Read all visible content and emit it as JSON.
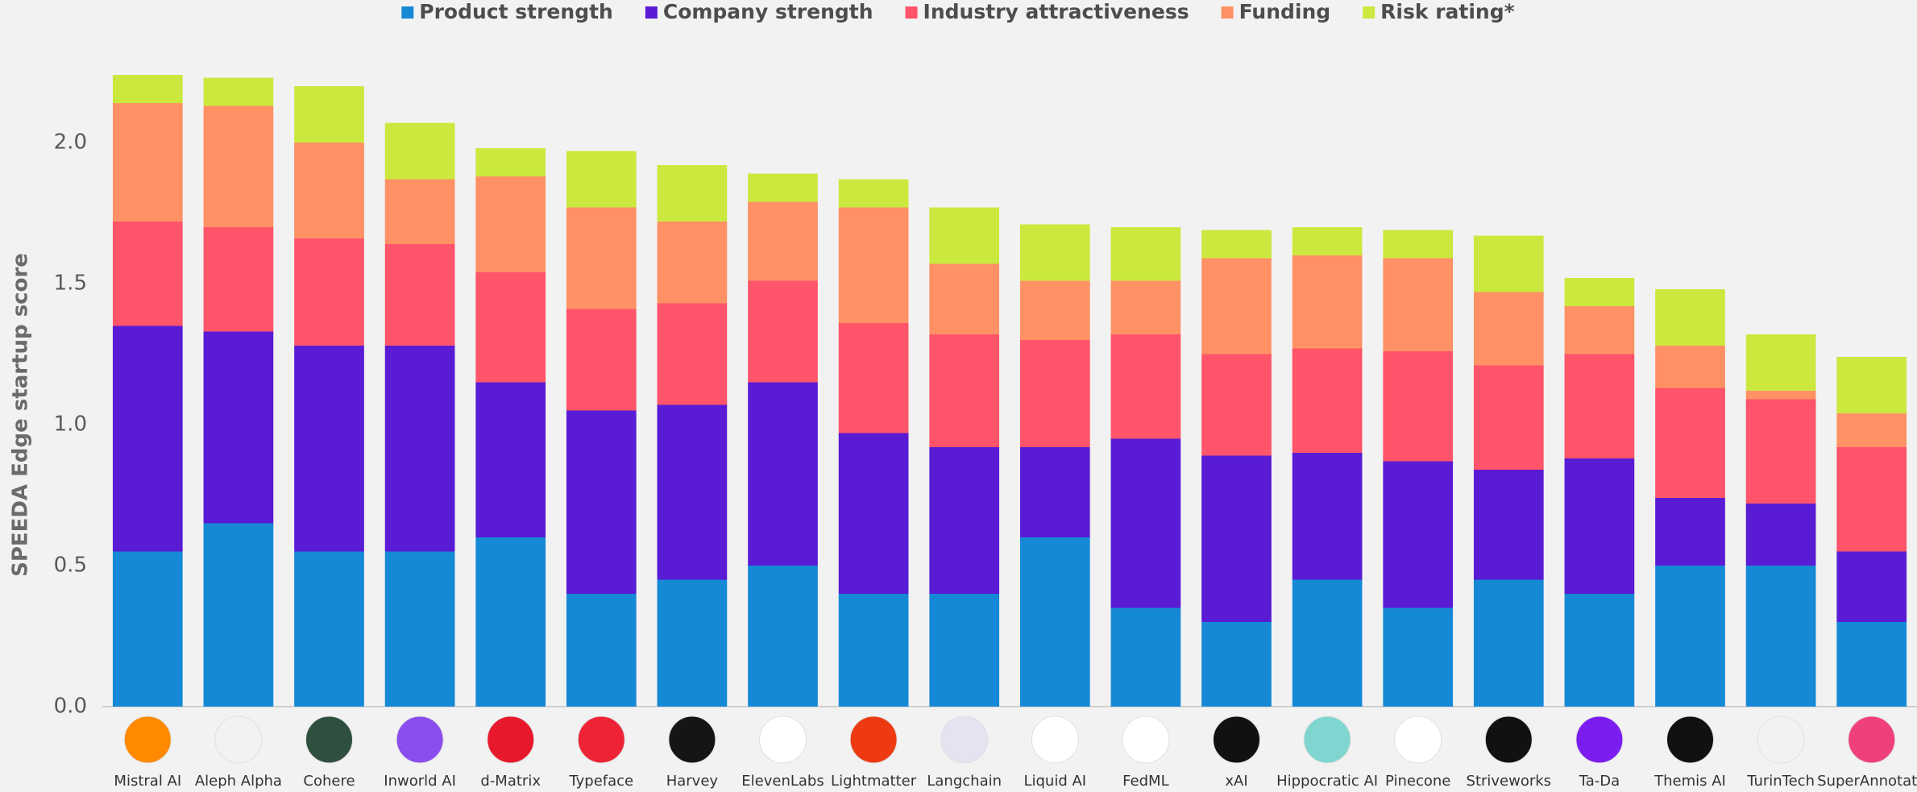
{
  "chart_data": {
    "type": "stacked_bar",
    "y_label": "SPEEDA Edge startup score",
    "categories": [
      "Mistral AI",
      "Aleph Alpha",
      "Cohere",
      "Inworld AI",
      "d-Matrix",
      "Typeface",
      "Harvey",
      "ElevenLabs",
      "Lightmatter",
      "Langchain",
      "Liquid AI",
      "FedML",
      "xAI",
      "Hippocratic AI",
      "Pinecone",
      "Striveworks",
      "Ta-Da",
      "Themis AI",
      "TurinTech",
      "SuperAnnotate"
    ],
    "series": [
      {
        "name": "Product strength",
        "color": "#1589d6",
        "values": [
          0.55,
          0.65,
          0.55,
          0.55,
          0.6,
          0.4,
          0.45,
          0.5,
          0.4,
          0.4,
          0.6,
          0.35,
          0.3,
          0.45,
          0.35,
          0.45,
          0.4,
          0.5,
          0.5,
          0.3
        ]
      },
      {
        "name": "Company strength",
        "color": "#5a1bd4",
        "values": [
          0.8,
          0.68,
          0.73,
          0.73,
          0.55,
          0.65,
          0.62,
          0.65,
          0.57,
          0.52,
          0.32,
          0.6,
          0.59,
          0.45,
          0.52,
          0.39,
          0.48,
          0.24,
          0.22,
          0.25
        ]
      },
      {
        "name": "Industry attractiveness",
        "color": "#ff5469",
        "values": [
          0.37,
          0.37,
          0.38,
          0.36,
          0.39,
          0.36,
          0.36,
          0.36,
          0.39,
          0.4,
          0.38,
          0.37,
          0.36,
          0.37,
          0.39,
          0.37,
          0.37,
          0.39,
          0.37,
          0.37
        ]
      },
      {
        "name": "Funding",
        "color": "#ff9165",
        "values": [
          0.42,
          0.43,
          0.34,
          0.23,
          0.34,
          0.36,
          0.29,
          0.28,
          0.41,
          0.25,
          0.21,
          0.19,
          0.34,
          0.33,
          0.33,
          0.26,
          0.17,
          0.15,
          0.03,
          0.12
        ]
      },
      {
        "name": "Risk rating*",
        "color": "#cbe83e",
        "values": [
          0.1,
          0.1,
          0.2,
          0.2,
          0.1,
          0.2,
          0.2,
          0.1,
          0.1,
          0.2,
          0.2,
          0.19,
          0.1,
          0.1,
          0.1,
          0.2,
          0.1,
          0.2,
          0.2,
          0.2
        ]
      }
    ],
    "ylim": [
      0,
      2.3
    ],
    "yticks": [
      {
        "value": 0,
        "label": "0.0"
      },
      0.5,
      {
        "value": 1,
        "label": "1.0"
      },
      1.5,
      {
        "value": 2,
        "label": "2.0"
      }
    ],
    "grid": false,
    "legend": "top"
  }
}
